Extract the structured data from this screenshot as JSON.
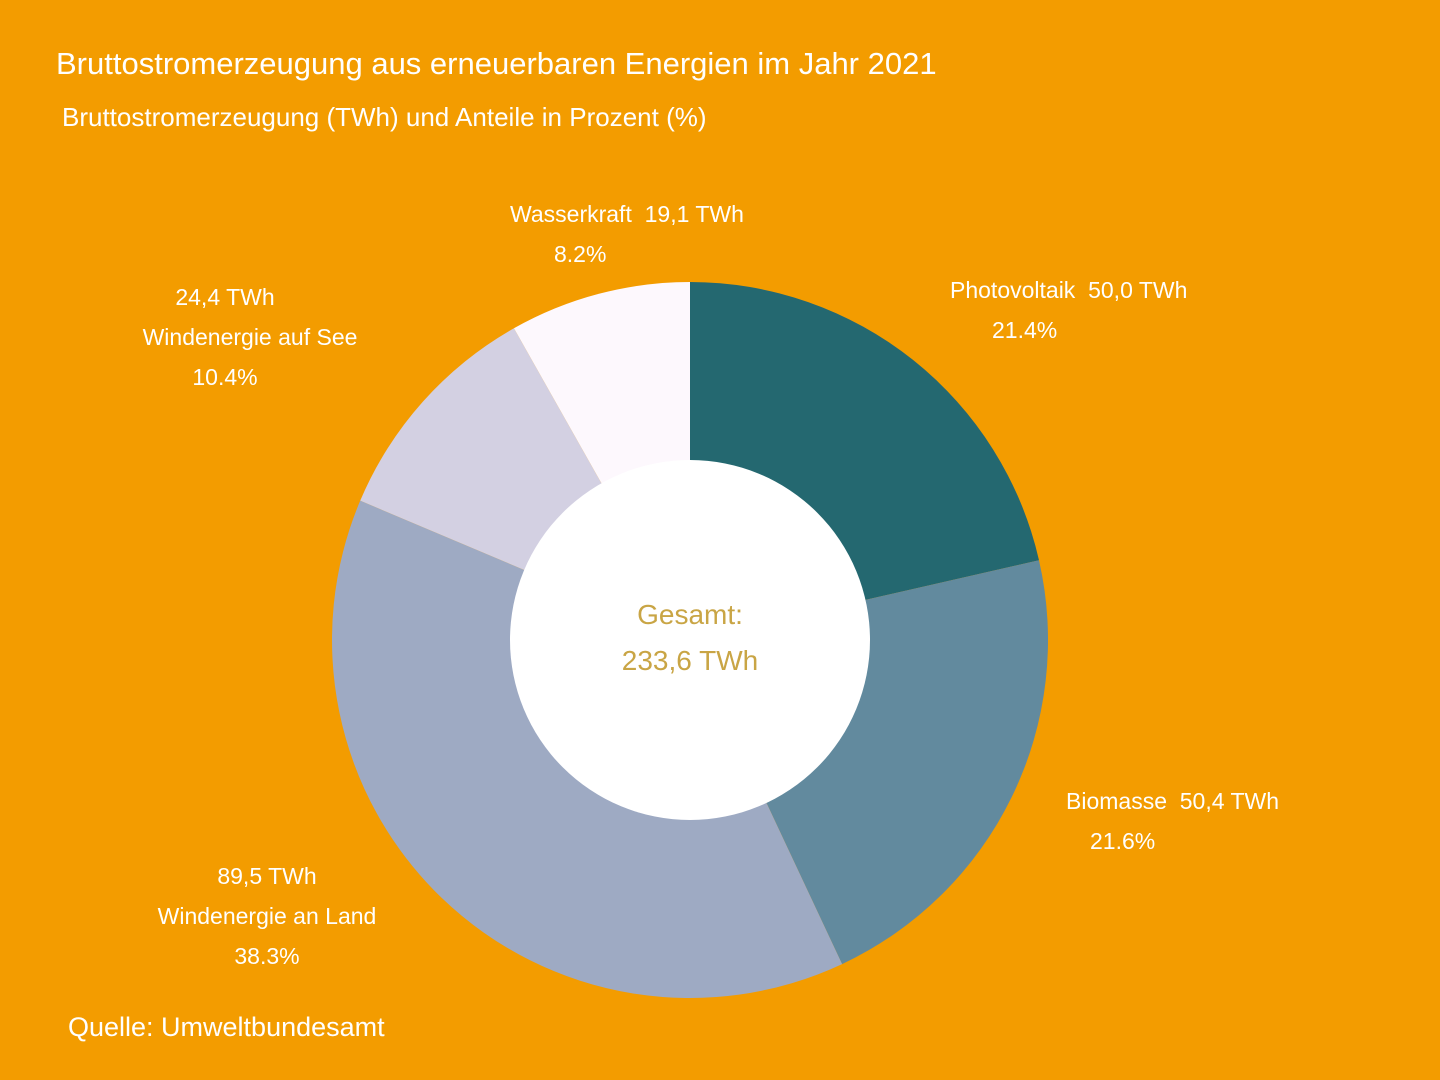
{
  "chart_data": {
    "type": "pie",
    "variant": "donut",
    "title": "Bruttostromerzeugung aus erneuerbaren Energien im Jahr 2021",
    "subtitle": "Bruttostromerzeugung (TWh) und Anteile in Prozent (%)",
    "center_label": {
      "line1": "Gesamt:",
      "line2": "233,6 TWh"
    },
    "source": "Quelle: Umweltbundesamt",
    "slices": [
      {
        "name": "Photovoltaik",
        "value": 50.0,
        "value_label": "50,0 TWh",
        "percent": 21.4,
        "percent_label": "21.4%",
        "color": "#246870"
      },
      {
        "name": "Biomasse",
        "value": 50.4,
        "value_label": "50,4 TWh",
        "percent": 21.6,
        "percent_label": "21.6%",
        "color": "#628a9e"
      },
      {
        "name": "Windenergie an Land",
        "value": 89.5,
        "value_label": "89,5 TWh",
        "percent": 38.3,
        "percent_label": "38.3%",
        "color": "#9eaac3"
      },
      {
        "name": "Windenergie auf See",
        "value": 24.4,
        "value_label": "24,4 TWh",
        "percent": 10.4,
        "percent_label": "10.4%",
        "color": "#d3d0e2"
      },
      {
        "name": "Wasserkraft",
        "value": 19.1,
        "value_label": "19,1 TWh",
        "percent": 8.2,
        "percent_label": "8.2%",
        "color": "#fdf8fd"
      }
    ],
    "colors": {
      "background": "#f39c00",
      "center_text": "#c9a545",
      "hole": "#ffffff"
    }
  }
}
